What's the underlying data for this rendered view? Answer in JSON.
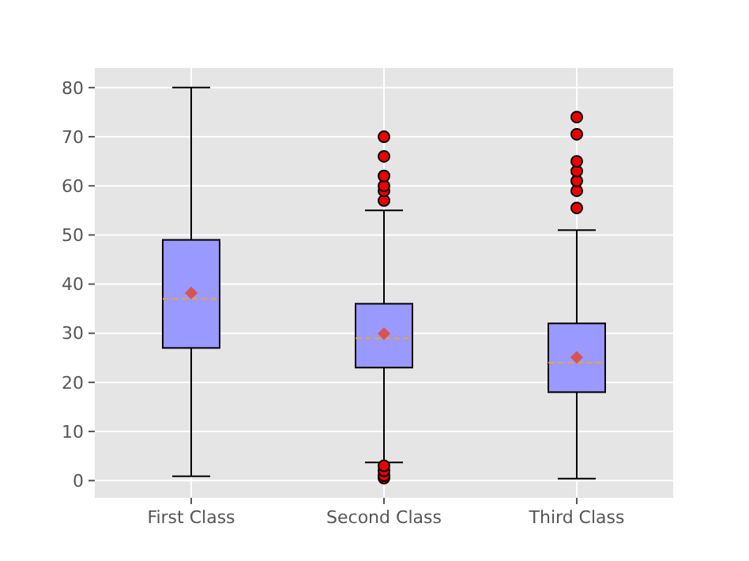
{
  "chart_data": {
    "type": "box",
    "categories": [
      "First Class",
      "Second Class",
      "Third Class"
    ],
    "boxes": [
      {
        "low": 0.9,
        "q1": 27,
        "median": 37,
        "q3": 49,
        "high": 80,
        "mean": 38.2
      },
      {
        "low": 3.7,
        "q1": 23,
        "median": 29,
        "q3": 36,
        "high": 55,
        "mean": 29.9,
        "outliers": [
          0.5,
          1,
          2,
          3,
          57,
          59,
          60,
          62,
          66,
          70
        ]
      },
      {
        "low": 0.4,
        "q1": 18,
        "median": 24,
        "q3": 32,
        "high": 51,
        "mean": 25.1,
        "outliers": [
          55.5,
          59,
          61,
          63,
          65,
          70.5,
          74
        ]
      }
    ],
    "color": "#9999ff",
    "grid": true,
    "ylim": [
      -3.5,
      84
    ],
    "yticks": [
      0,
      10,
      20,
      30,
      40,
      50,
      60,
      70,
      80
    ]
  }
}
